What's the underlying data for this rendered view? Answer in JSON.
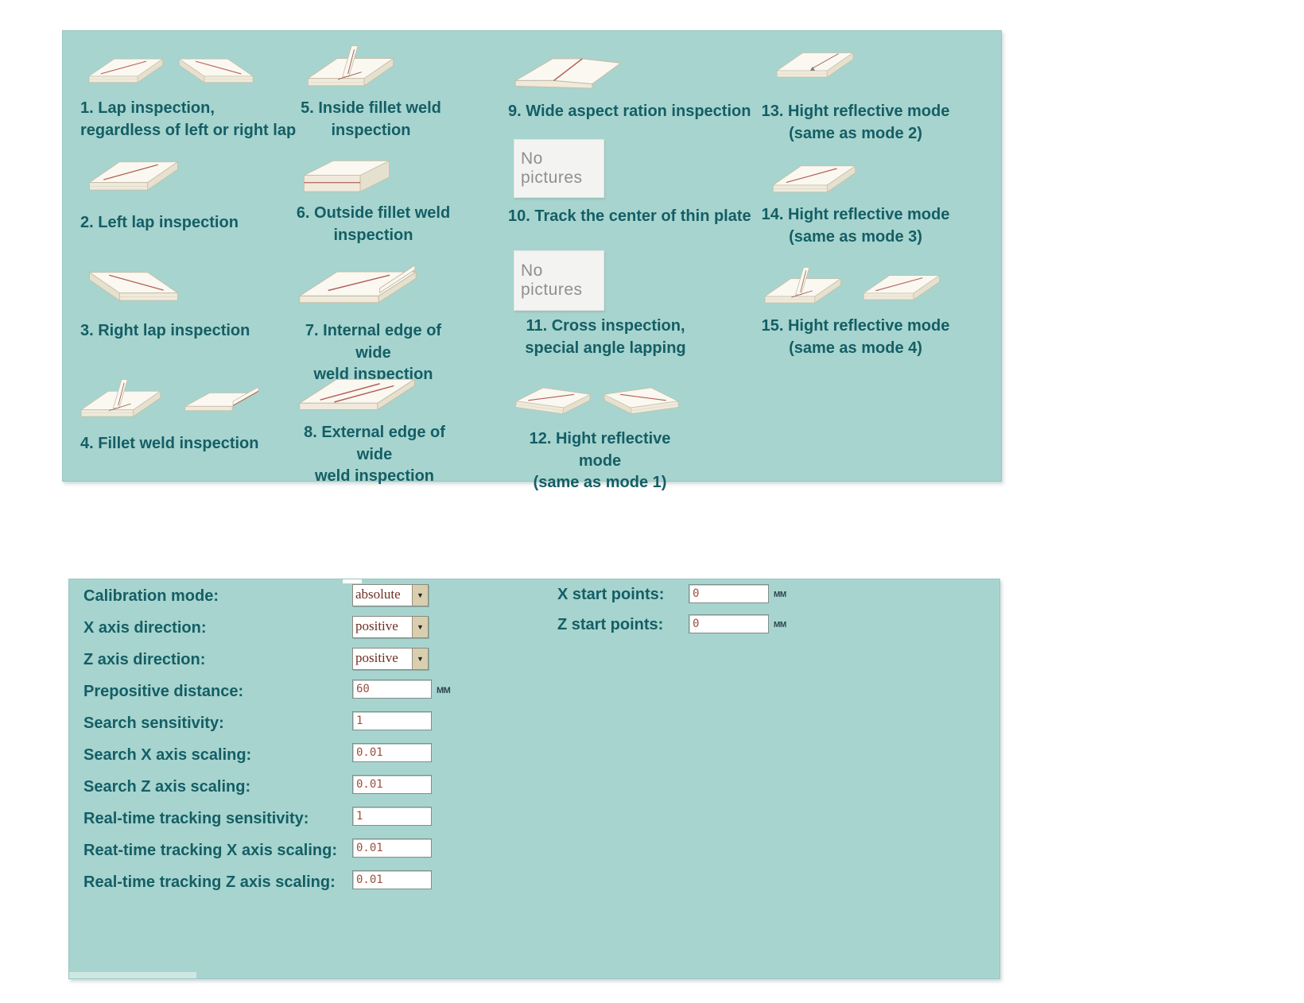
{
  "colors": {
    "panel_bg": "#a7d4ce",
    "label_text": "#145e66",
    "combo_text": "#6e2f23",
    "input_text": "#9c4f3f",
    "seam_red": "#b2625a",
    "no_pictures_bg": "#f3f3f1",
    "no_pictures_text": "#8f8f8f"
  },
  "top_panel": {
    "no_pictures_label": "No pictures",
    "modes": [
      {
        "label": "1. Lap inspection,\nregardless of left or right lap"
      },
      {
        "label": "2. Left lap inspection"
      },
      {
        "label": "3. Right lap inspection"
      },
      {
        "label": "4. Fillet weld inspection"
      },
      {
        "label": "5. Inside fillet weld\ninspection"
      },
      {
        "label": "6. Outside fillet weld\ninspection"
      },
      {
        "label": "7. Internal edge of wide\nweld inspection"
      },
      {
        "label": "8. External edge of wide\nweld inspection"
      },
      {
        "label": "9. Wide aspect ration inspection"
      },
      {
        "label": "10. Track the center of thin plate"
      },
      {
        "label": "11. Cross inspection,\nspecial angle lapping"
      },
      {
        "label": "12. Hight reflective mode\n(same as mode 1)"
      },
      {
        "label": "13. Hight reflective mode\n(same as mode 2)"
      },
      {
        "label": "14. Hight reflective mode\n(same as mode 3)"
      },
      {
        "label": "15. Hight reflective mode\n(same as mode 4)"
      }
    ]
  },
  "form": {
    "rows": [
      {
        "label": "Calibration mode:",
        "control": "select",
        "value": "absolute"
      },
      {
        "label": "X axis direction:",
        "control": "select",
        "value": "positive"
      },
      {
        "label": "Z axis direction:",
        "control": "select",
        "value": "positive"
      },
      {
        "label": "Prepositive distance:",
        "control": "input",
        "value": "60",
        "unit": "MM"
      },
      {
        "label": "Search sensitivity:",
        "control": "input",
        "value": "1"
      },
      {
        "label": "Search X axis scaling:",
        "control": "input",
        "value": "0.01"
      },
      {
        "label": "Search Z axis scaling:",
        "control": "input",
        "value": "0.01"
      },
      {
        "label": "Real-time tracking sensitivity:",
        "control": "input",
        "value": "1"
      },
      {
        "label": "Reat-time tracking X axis scaling:",
        "control": "input",
        "value": "0.01"
      },
      {
        "label": "Real-time tracking Z axis scaling:",
        "control": "input",
        "value": "0.01"
      }
    ],
    "right_rows": [
      {
        "label": "X start points:",
        "value": "0",
        "unit": "MM"
      },
      {
        "label": "Z start points:",
        "value": "0",
        "unit": "MM"
      }
    ]
  }
}
